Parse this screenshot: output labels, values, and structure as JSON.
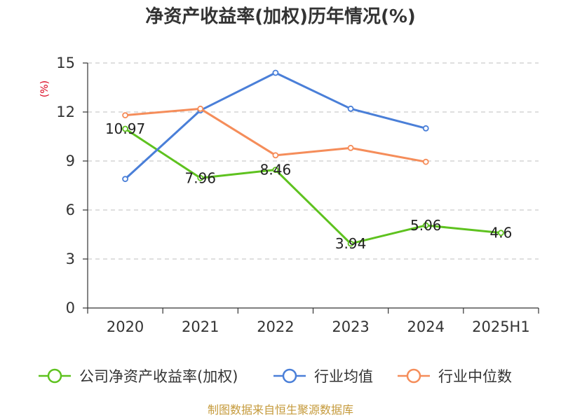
{
  "chart_data": {
    "type": "line",
    "title": "净资产收益率(加权)历年情况(%)",
    "ylabel": "(%)",
    "categories": [
      "2020",
      "2021",
      "2022",
      "2023",
      "2024",
      "2025H1"
    ],
    "ylim": [
      0,
      15
    ],
    "yticks": [
      "0",
      "3",
      "6",
      "9",
      "12",
      "15"
    ],
    "grid": true,
    "legend_position": "bottom",
    "series": [
      {
        "name": "公司净资产收益率(加权)",
        "color": "#5ec21f",
        "values": [
          10.97,
          7.96,
          8.46,
          3.94,
          5.06,
          4.6
        ],
        "labels": [
          "10.97",
          "7.96",
          "8.46",
          "3.94",
          "5.06",
          "4.6"
        ]
      },
      {
        "name": "行业均值",
        "color": "#4a7fd8",
        "values": [
          7.9,
          12.1,
          14.4,
          12.2,
          11.0,
          null
        ]
      },
      {
        "name": "行业中位数",
        "color": "#f58d5a",
        "values": [
          11.8,
          12.2,
          9.35,
          9.8,
          8.95,
          null
        ]
      }
    ]
  },
  "colors": {
    "axis": "#333333",
    "grid": "#cccccc",
    "unit_label": "#d9001b",
    "source_text": "#c59a3b"
  },
  "source": "制图数据来自恒生聚源数据库"
}
